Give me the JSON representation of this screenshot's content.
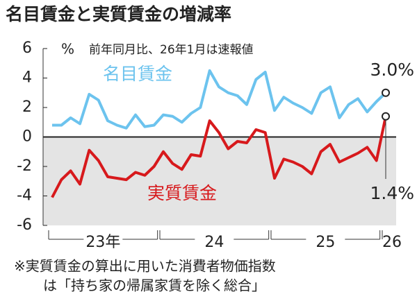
{
  "chart_data": {
    "type": "line",
    "title": "名目賃金と実質賃金の増減率",
    "subtitle": "前年同月比、26年1月は速報値",
    "y_unit": "%",
    "categories": [
      null,
      null,
      null,
      null,
      null,
      null,
      null,
      null,
      null,
      null,
      null,
      null,
      null,
      null,
      null,
      null,
      null,
      null,
      null,
      null,
      null,
      null,
      null,
      null,
      null,
      null,
      null,
      null,
      null,
      null,
      null,
      null,
      null,
      null,
      null,
      null,
      null
    ],
    "x_groups": [
      "23年",
      "24",
      "25",
      "26"
    ],
    "series": [
      {
        "name": "名目賃金",
        "color": "#6cc3ee",
        "values": [
          0.8,
          0.8,
          1.3,
          0.9,
          2.9,
          2.5,
          1.1,
          0.8,
          0.6,
          1.5,
          0.7,
          0.8,
          1.5,
          1.4,
          1.0,
          1.6,
          2.0,
          4.5,
          3.4,
          3.0,
          2.8,
          2.2,
          3.9,
          4.4,
          1.8,
          2.7,
          2.3,
          2.0,
          1.6,
          3.0,
          3.4,
          1.3,
          2.2,
          2.6,
          1.7,
          2.4,
          3.0
        ],
        "value_labels": [
          null,
          null,
          null,
          null,
          null,
          null,
          null,
          null,
          null,
          null,
          null,
          null,
          null,
          null,
          null,
          null,
          null,
          null,
          null,
          null,
          null,
          null,
          null,
          null,
          null,
          null,
          null,
          null,
          null,
          null,
          null,
          null,
          null,
          null,
          null,
          null,
          "3.0%"
        ]
      },
      {
        "name": "実質賃金",
        "color": "#d7191c",
        "values": [
          -4.1,
          -2.9,
          -2.3,
          -3.2,
          -0.9,
          -1.6,
          -2.7,
          -2.8,
          -2.9,
          -2.4,
          -2.6,
          -2.0,
          -1.0,
          -1.8,
          -2.2,
          -1.2,
          -1.3,
          1.1,
          0.3,
          -0.8,
          -0.3,
          -0.4,
          0.5,
          0.3,
          -2.8,
          -1.5,
          -1.7,
          -2.0,
          -2.5,
          -1.0,
          -0.5,
          -1.7,
          -1.4,
          -1.1,
          -0.7,
          -1.6,
          1.4
        ],
        "value_labels": [
          null,
          null,
          null,
          null,
          null,
          null,
          null,
          null,
          null,
          null,
          null,
          null,
          null,
          null,
          null,
          null,
          null,
          null,
          null,
          null,
          null,
          null,
          null,
          null,
          null,
          null,
          null,
          null,
          null,
          null,
          null,
          null,
          null,
          null,
          null,
          null,
          "1.4%"
        ]
      }
    ],
    "ylim": [
      -6,
      6
    ],
    "yticks": [
      -6,
      -4,
      -2,
      0,
      2,
      4,
      6
    ],
    "negative_shading": "#e4e4e4",
    "footnote": [
      "※実質賃金の算出に用いた消費者物価指数",
      "は「持ち家の帰属家賃を除く総合」"
    ]
  }
}
